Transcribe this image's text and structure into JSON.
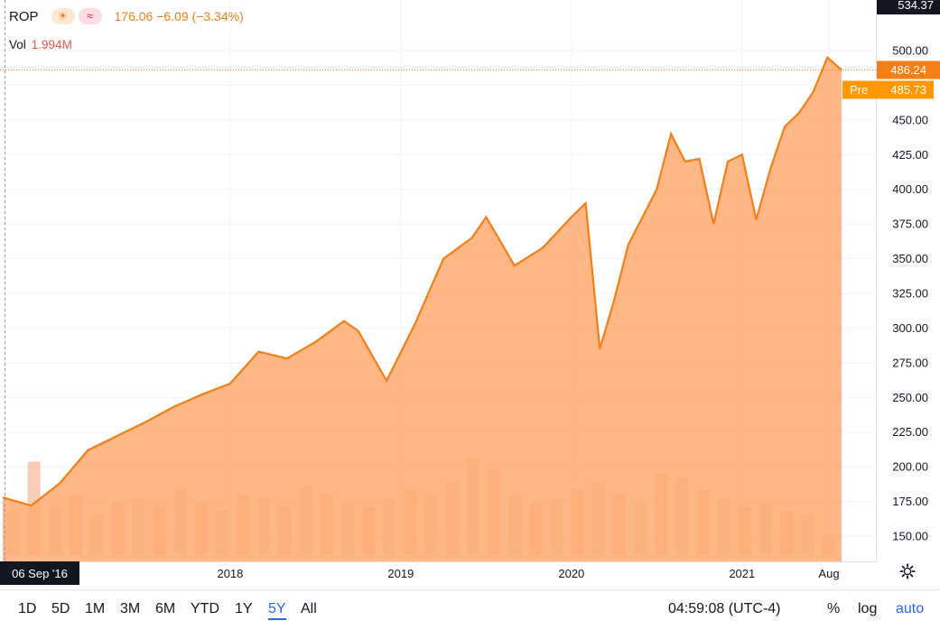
{
  "legend": {
    "symbol": "ROP",
    "session_icon": "sun-icon",
    "data_icon": "wave-icon",
    "quote": "176.06  −6.09 (−3.34%)",
    "vol_label": "Vol",
    "vol_value": "1.994M"
  },
  "price_axis": {
    "top_label": "534.37",
    "current_price": "486.24",
    "pre_label": "Pre",
    "pre_price": "485.73"
  },
  "time_axis": {
    "start_label": "06 Sep '16",
    "labels": [
      "2018",
      "2019",
      "2020",
      "2021",
      "Aug"
    ]
  },
  "ranges": {
    "items": [
      "1D",
      "5D",
      "1M",
      "3M",
      "6M",
      "YTD",
      "1Y",
      "5Y",
      "All"
    ],
    "active": "5Y"
  },
  "footer": {
    "time": "04:59:08 (UTC-4)",
    "percent": "%",
    "log": "log",
    "auto": "auto"
  },
  "colors": {
    "line": "#f57f17",
    "area": "#ffaa70",
    "vol_up": "#d4bf8c",
    "vol_down": "#f6a17c",
    "price_badge": "#f57f17",
    "pre_badge": "#ff9800"
  },
  "chart_data": {
    "type": "area",
    "y_ticks": [
      150,
      175,
      200,
      225,
      250,
      275,
      300,
      325,
      350,
      375,
      400,
      425,
      450,
      475,
      500
    ],
    "ylim": [
      138,
      534.37
    ],
    "x_ticks": [
      "2018",
      "2019",
      "2020",
      "2021",
      "Aug"
    ],
    "series": [
      {
        "x": [
          "2016-09",
          "2016-11",
          "2017-01",
          "2017-03",
          "2017-05",
          "2017-07",
          "2017-09",
          "2017-11",
          "2018-01",
          "2018-03",
          "2018-05",
          "2018-07",
          "2018-09",
          "2018-10",
          "2018-12",
          "2019-02",
          "2019-04",
          "2019-06",
          "2019-07",
          "2019-09",
          "2019-11",
          "2020-01",
          "2020-02",
          "2020-03",
          "2020-04",
          "2020-05",
          "2020-07",
          "2020-08",
          "2020-09",
          "2020-10",
          "2020-11",
          "2020-12",
          "2021-01",
          "2021-02",
          "2021-03",
          "2021-04",
          "2021-05",
          "2021-06",
          "2021-07",
          "2021-08"
        ],
        "values": [
          178,
          172,
          188,
          212,
          222,
          232,
          243,
          252,
          260,
          283,
          278,
          290,
          305,
          298,
          262,
          303,
          350,
          365,
          380,
          345,
          358,
          380,
          390,
          285,
          320,
          360,
          400,
          440,
          420,
          422,
          375,
          420,
          425,
          378,
          415,
          445,
          455,
          470,
          495,
          486
        ]
      }
    ],
    "volume": {
      "unit": "M",
      "values": [
        1.1,
        2.3,
        1.2,
        1.5,
        1.0,
        1.3,
        1.4,
        1.2,
        1.6,
        1.3,
        1.1,
        1.5,
        1.4,
        1.2,
        1.7,
        1.5,
        1.3,
        1.2,
        1.4,
        1.6,
        1.5,
        1.8,
        2.4,
        2.1,
        1.5,
        1.3,
        1.4,
        1.6,
        1.8,
        1.5,
        1.3,
        2.0,
        1.9,
        1.6,
        1.4,
        1.2,
        1.3,
        1.1,
        1.0,
        0.5
      ]
    }
  }
}
